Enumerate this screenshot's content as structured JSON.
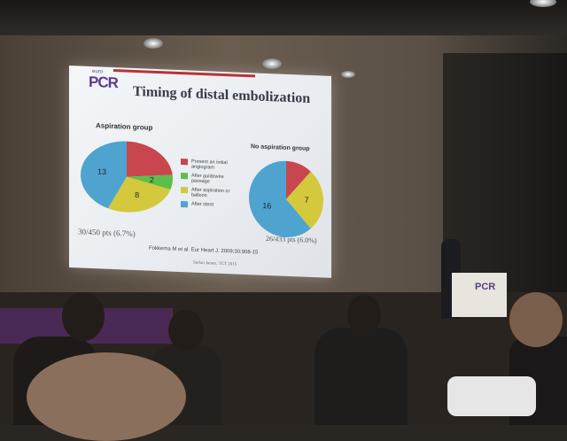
{
  "slide": {
    "logo": "PCR",
    "logo_small": "euro",
    "title": "Timing of distal embolization",
    "citation": "Fokkema M et al. Eur Heart J. 2009;30:908-15",
    "credit": "Stefan James, TCT 2015",
    "legend": [
      {
        "label": "Present an initial angiogram",
        "color": "#c8464e"
      },
      {
        "label": "After guidewire passage",
        "color": "#5cbf4a"
      },
      {
        "label": "After aspiration or balloon",
        "color": "#d4c83c"
      },
      {
        "label": "After stent",
        "color": "#4fa3cf"
      }
    ],
    "groups": [
      {
        "title": "Aspiration group",
        "summary": "30/450 pts  (6.7%)",
        "slices": [
          {
            "value": 7,
            "label": ""
          },
          {
            "value": 2,
            "label": "2"
          },
          {
            "value": 8,
            "label": "8"
          },
          {
            "value": 13,
            "label": "13"
          }
        ]
      },
      {
        "title": "No aspiration group",
        "summary": "26/433 pts  (6.0%)",
        "slices": [
          {
            "value": 3,
            "label": ""
          },
          {
            "value": 0,
            "label": ""
          },
          {
            "value": 7,
            "label": "7"
          },
          {
            "value": 16,
            "label": "16"
          }
        ]
      }
    ]
  },
  "podium_logo": "PCR"
}
